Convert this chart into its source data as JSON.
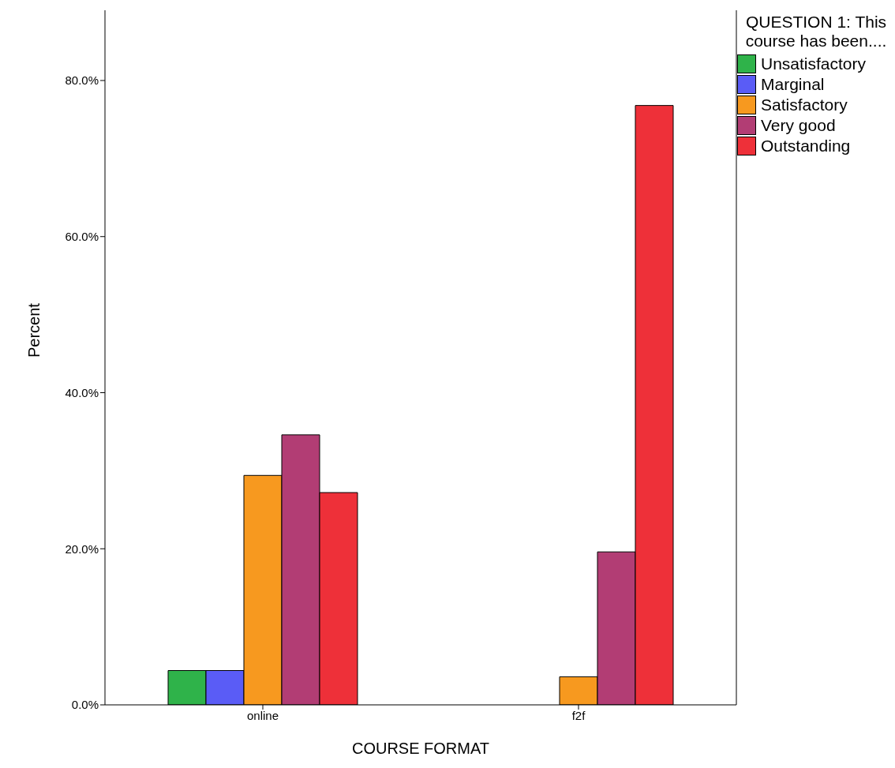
{
  "chart_data": {
    "type": "bar",
    "xlabel": "COURSE FORMAT",
    "ylabel": "Percent",
    "legend_title": "QUESTION 1: This course has been....",
    "legend": "right",
    "categories": [
      "online",
      "f2f"
    ],
    "series": [
      {
        "name": "Unsatisfactory",
        "color": "#2fb34a",
        "values": [
          4.4,
          0
        ]
      },
      {
        "name": "Marginal",
        "color": "#5a5cf6",
        "values": [
          4.4,
          0
        ]
      },
      {
        "name": "Satisfactory",
        "color": "#f7991f",
        "values": [
          29.4,
          3.6
        ]
      },
      {
        "name": "Very good",
        "color": "#b23d74",
        "values": [
          34.6,
          19.6
        ]
      },
      {
        "name": "Outstanding",
        "color": "#ee3039",
        "values": [
          27.2,
          76.8
        ]
      }
    ],
    "ylim": [
      0,
      89
    ],
    "yticks": [
      {
        "value": 0,
        "label": "0.0%"
      },
      {
        "value": 20,
        "label": "20.0%"
      },
      {
        "value": 40,
        "label": "40.0%"
      },
      {
        "value": 60,
        "label": "60.0%"
      },
      {
        "value": 80,
        "label": "80.0%"
      }
    ],
    "grid": false
  }
}
